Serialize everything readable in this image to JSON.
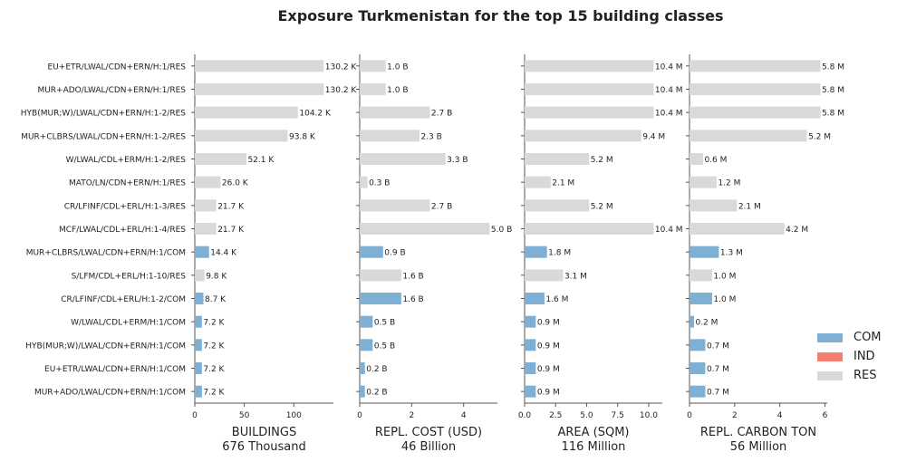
{
  "title": "Exposure Turkmenistan for the top 15 building classes",
  "colors": {
    "COM": "#7fafd2",
    "IND": "#f47f6f",
    "RES": "#d9d9d9"
  },
  "legend": [
    {
      "key": "COM",
      "label": "COM"
    },
    {
      "key": "IND",
      "label": "IND"
    },
    {
      "key": "RES",
      "label": "RES"
    }
  ],
  "chart_data": {
    "type": "bar",
    "orientation": "horizontal",
    "categories": [
      "EU+ETR/LWAL/CDN+ERN/H:1/RES",
      "MUR+ADO/LWAL/CDN+ERN/H:1/RES",
      "HYB(MUR;W)/LWAL/CDN+ERN/H:1-2/RES",
      "MUR+CLBRS/LWAL/CDN+ERN/H:1-2/RES",
      "W/LWAL/CDL+ERM/H:1-2/RES",
      "MATO/LN/CDN+ERN/H:1/RES",
      "CR/LFINF/CDL+ERL/H:1-3/RES",
      "MCF/LWAL/CDL+ERL/H:1-4/RES",
      "MUR+CLBRS/LWAL/CDN+ERN/H:1/COM",
      "S/LFM/CDL+ERL/H:1-10/RES",
      "CR/LFINF/CDL+ERL/H:1-2/COM",
      "W/LWAL/CDL+ERM/H:1/COM",
      "HYB(MUR;W)/LWAL/CDN+ERN/H:1/COM",
      "EU+ETR/LWAL/CDN+ERN/H:1/COM",
      "MUR+ADO/LWAL/CDN+ERN/H:1/COM"
    ],
    "occupancy": [
      "RES",
      "RES",
      "RES",
      "RES",
      "RES",
      "RES",
      "RES",
      "RES",
      "COM",
      "RES",
      "COM",
      "COM",
      "COM",
      "COM",
      "COM"
    ],
    "panels": [
      {
        "xlabel": "BUILDINGS",
        "total": "676 Thousand",
        "xlim": [
          0,
          140
        ],
        "ticks": [
          0,
          50,
          100
        ],
        "tick_labels": [
          "0",
          "50",
          "100"
        ],
        "values": [
          130.2,
          130.2,
          104.2,
          93.8,
          52.1,
          26.0,
          21.7,
          21.7,
          14.4,
          9.8,
          8.7,
          7.2,
          7.2,
          7.2,
          7.2
        ],
        "value_labels": [
          "130.2 K",
          "130.2 K",
          "104.2 K",
          "93.8 K",
          "52.1 K",
          "26.0 K",
          "21.7 K",
          "21.7 K",
          "14.4 K",
          "9.8 K",
          "8.7 K",
          "7.2 K",
          "7.2 K",
          "7.2 K",
          "7.2 K"
        ]
      },
      {
        "xlabel": "REPL. COST (USD)",
        "total": "46 Billion",
        "xlim": [
          0,
          5.3
        ],
        "ticks": [
          0,
          2,
          4
        ],
        "tick_labels": [
          "0",
          "2",
          "4"
        ],
        "values": [
          1.0,
          1.0,
          2.7,
          2.3,
          3.3,
          0.3,
          2.7,
          5.0,
          0.9,
          1.6,
          1.6,
          0.5,
          0.5,
          0.2,
          0.2
        ],
        "value_labels": [
          "1.0 B",
          "1.0 B",
          "2.7 B",
          "2.3 B",
          "3.3 B",
          "0.3 B",
          "2.7 B",
          "5.0 B",
          "0.9 B",
          "1.6 B",
          "1.6 B",
          "0.5 B",
          "0.5 B",
          "0.2 B",
          "0.2 B"
        ]
      },
      {
        "xlabel": "AREA (SQM)",
        "total": "116 Million",
        "xlim": [
          0,
          11.1
        ],
        "ticks": [
          0,
          2.5,
          5,
          7.5,
          10
        ],
        "tick_labels": [
          "0.0",
          "2.5",
          "5.0",
          "7.5",
          "10.0"
        ],
        "values": [
          10.4,
          10.4,
          10.4,
          9.4,
          5.2,
          2.1,
          5.2,
          10.4,
          1.8,
          3.1,
          1.6,
          0.9,
          0.9,
          0.9,
          0.9
        ],
        "value_labels": [
          "10.4 M",
          "10.4 M",
          "10.4 M",
          "9.4 M",
          "5.2 M",
          "2.1 M",
          "5.2 M",
          "10.4 M",
          "1.8 M",
          "3.1 M",
          "1.6 M",
          "0.9 M",
          "0.9 M",
          "0.9 M",
          "0.9 M"
        ]
      },
      {
        "xlabel": "REPL. CARBON TON",
        "total": "56 Million",
        "xlim": [
          0,
          6.1
        ],
        "ticks": [
          0,
          2,
          4,
          6
        ],
        "tick_labels": [
          "0",
          "2",
          "4",
          "6"
        ],
        "values": [
          5.8,
          5.8,
          5.8,
          5.2,
          0.6,
          1.2,
          2.1,
          4.2,
          1.3,
          1.0,
          1.0,
          0.2,
          0.7,
          0.7,
          0.7
        ],
        "value_labels": [
          "5.8 M",
          "5.8 M",
          "5.8 M",
          "5.2 M",
          "0.6 M",
          "1.2 M",
          "2.1 M",
          "4.2 M",
          "1.3 M",
          "1.0 M",
          "1.0 M",
          "0.2 M",
          "0.7 M",
          "0.7 M",
          "0.7 M"
        ]
      }
    ]
  }
}
